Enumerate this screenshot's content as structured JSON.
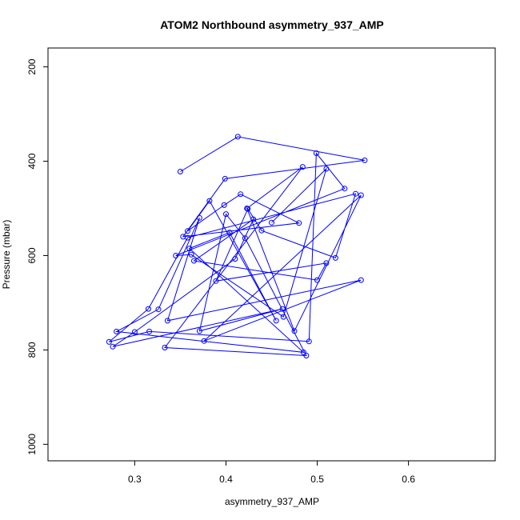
{
  "chart_data": {
    "type": "line",
    "title": "ATOM2 Northbound asymmetry_937_AMP",
    "xlabel": "asymmetry_937_AMP",
    "ylabel": "Pressure (mbar)",
    "xlim": [
      0.205,
      0.695
    ],
    "ylim": [
      1035,
      160
    ],
    "y_reversed": true,
    "x_ticks": [
      0.3,
      0.4,
      0.5,
      0.6
    ],
    "x_tick_labels": [
      "0.3",
      "0.4",
      "0.5",
      "0.6"
    ],
    "y_ticks": [
      200,
      400,
      600,
      800,
      1000
    ],
    "y_tick_labels": [
      "200",
      "400",
      "600",
      "800",
      "1000"
    ],
    "grid": false,
    "legend": "none",
    "line_color": "#0000ff",
    "marker": "open-circle",
    "series": [
      {
        "x": [
          0.35,
          0.413,
          0.552,
          0.399,
          0.353,
          0.48,
          0.416,
          0.398,
          0.358,
          0.382,
          0.455,
          0.404,
          0.36,
          0.485,
          0.28,
          0.326,
          0.371,
          0.336,
          0.548,
          0.376,
          0.548,
          0.475,
          0.423,
          0.484,
          0.333,
          0.488,
          0.421,
          0.4,
          0.371,
          0.462,
          0.276,
          0.3,
          0.41,
          0.43,
          0.365,
          0.5,
          0.51,
          0.389,
          0.424,
          0.439,
          0.52,
          0.542,
          0.358,
          0.315,
          0.272,
          0.316,
          0.491,
          0.499,
          0.53,
          0.345,
          0.362,
          0.463,
          0.51,
          0.45
        ],
        "y": [
          422,
          348,
          398,
          437,
          560,
          531,
          470,
          493,
          548,
          484,
          738,
          551,
          585,
          805,
          761,
          714,
          520,
          738,
          652,
          781,
          472,
          760,
          500,
          412,
          795,
          812,
          563,
          512,
          760,
          713,
          793,
          762,
          607,
          523,
          611,
          652,
          616,
          654,
          501,
          547,
          605,
          469,
          562,
          713,
          783,
          761,
          782,
          383,
          458,
          600,
          598,
          730,
          416,
          530
        ]
      }
    ]
  }
}
